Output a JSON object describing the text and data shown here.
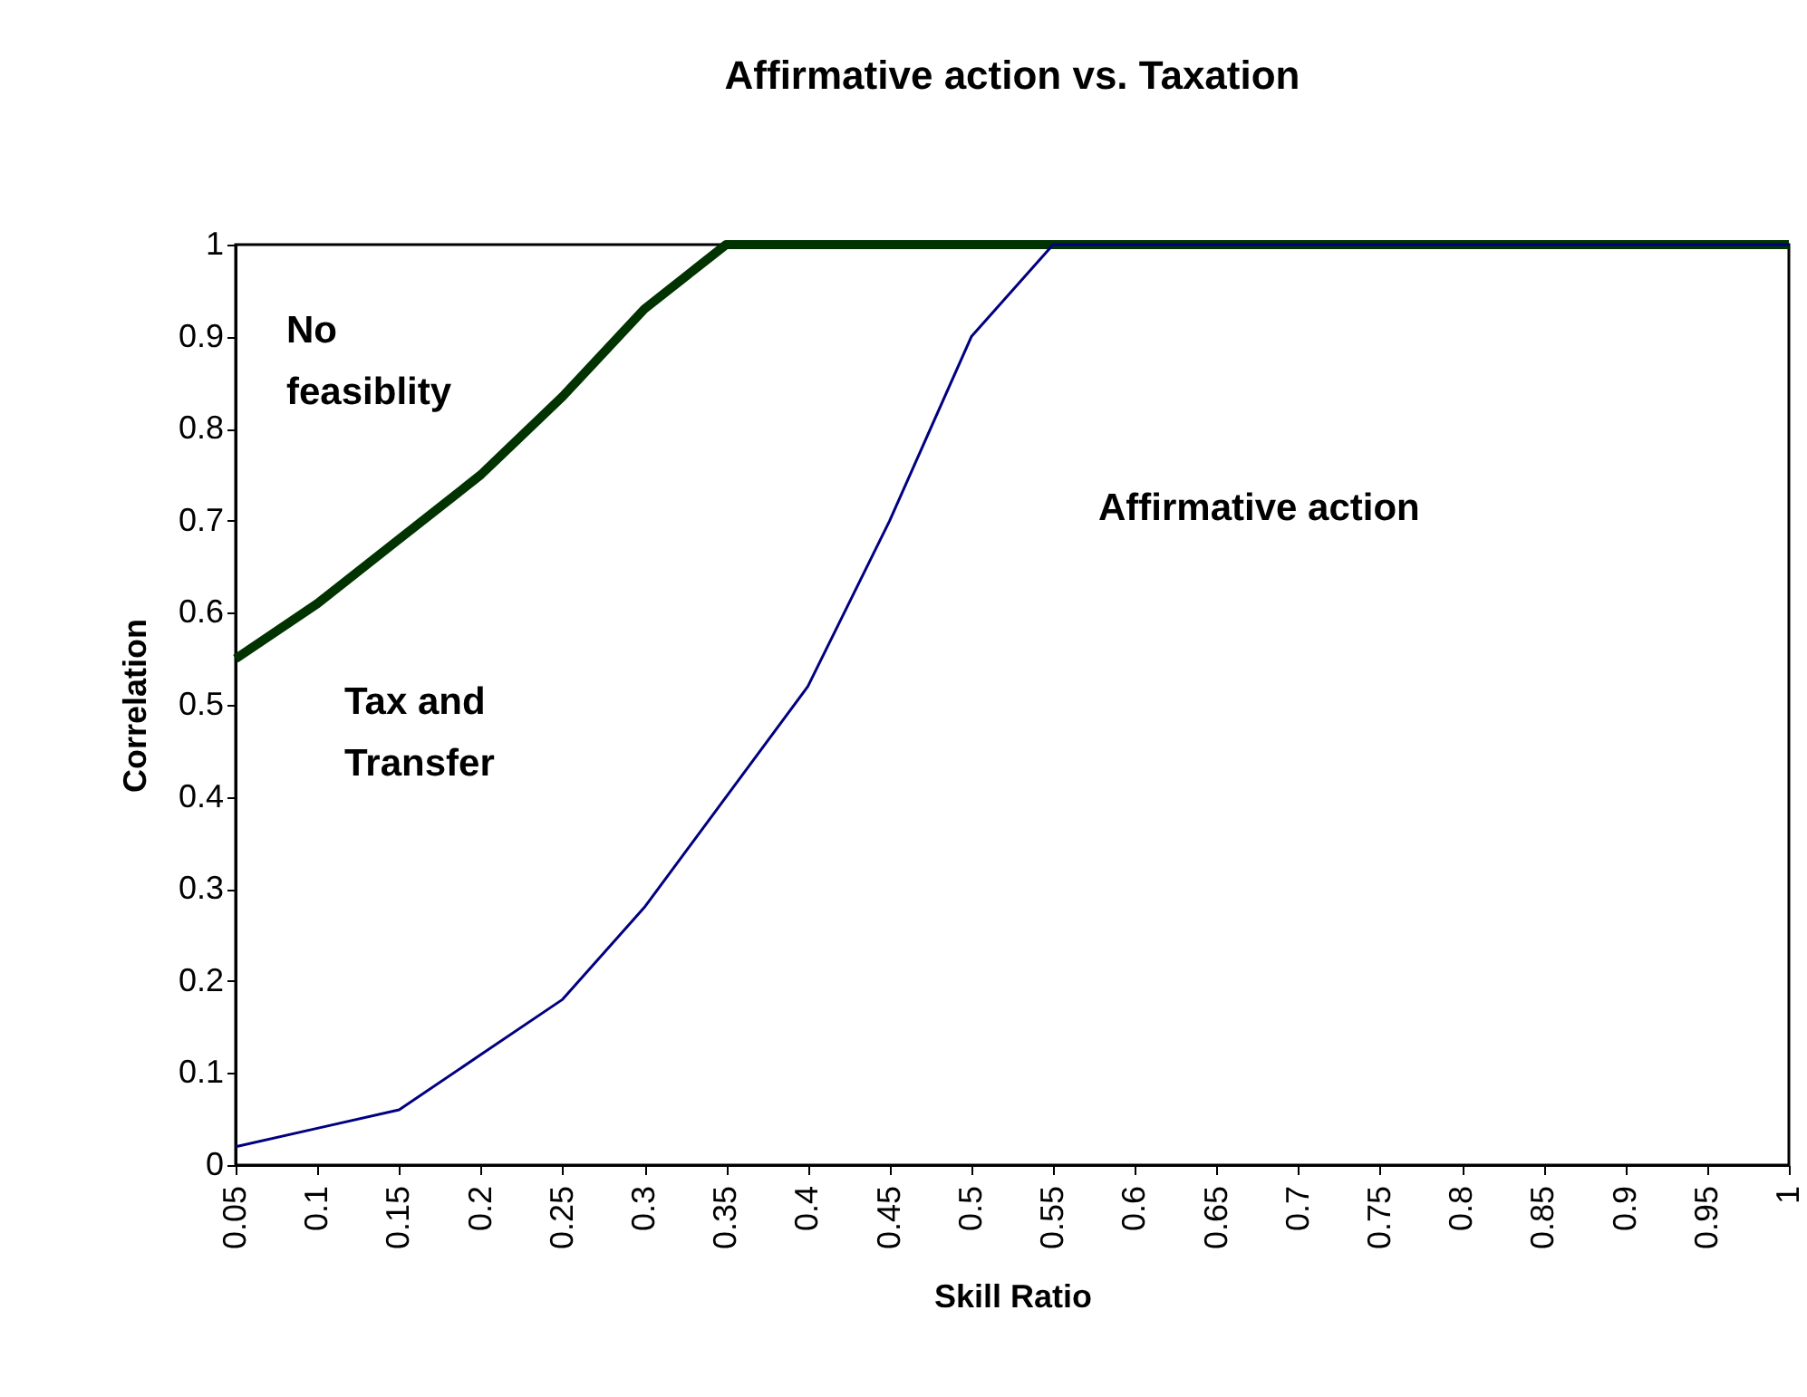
{
  "chart_data": {
    "type": "line",
    "title": "Affirmative action vs. Taxation",
    "xlabel": "Skill Ratio",
    "ylabel": "Correlation",
    "categories": [
      "0.05",
      "0.1",
      "0.15",
      "0.2",
      "0.25",
      "0.3",
      "0.35",
      "0.4",
      "0.45",
      "0.5",
      "0.55",
      "0.6",
      "0.65",
      "0.7",
      "0.75",
      "0.8",
      "0.85",
      "0.9",
      "0.95",
      "1"
    ],
    "series": [
      {
        "color": "#003300",
        "values": [
          0.55,
          0.61,
          0.68,
          0.75,
          0.835,
          0.93,
          1,
          1,
          1,
          1,
          1,
          1,
          1,
          1,
          1,
          1,
          1,
          1,
          1,
          1
        ]
      },
      {
        "color": "#000080",
        "values": [
          0.02,
          0.04,
          0.06,
          0.12,
          0.18,
          0.28,
          0.4,
          0.52,
          0.7,
          0.9,
          1,
          1,
          1,
          1,
          1,
          1,
          1,
          1,
          1,
          1
        ]
      }
    ],
    "ylim": [
      0,
      1
    ],
    "yticks": [
      0,
      0.1,
      0.2,
      0.3,
      0.4,
      0.5,
      0.6,
      0.7,
      0.8,
      0.9,
      1
    ],
    "annotations": [
      "No\nfeasiblity",
      "Tax and\nTransfer",
      "Affirmative action"
    ],
    "grid": false,
    "marker": "none",
    "line_style": "solid"
  }
}
